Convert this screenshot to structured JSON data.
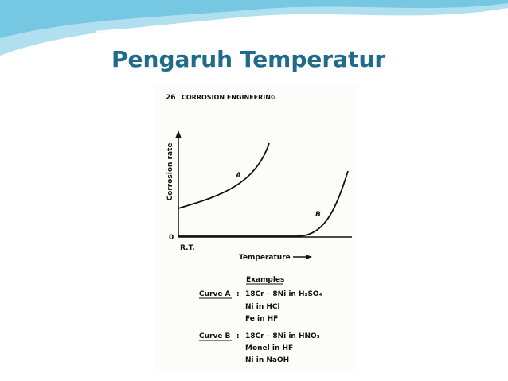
{
  "slide": {
    "title": "Pengaruh Temperatur"
  },
  "figure": {
    "header_number": "26",
    "header_title": "CORROSION ENGINEERING",
    "y_axis_label": "Corrosion rate",
    "x_axis_label": "Temperature",
    "origin_label": "0",
    "rt_label": "R.T.",
    "curve_labels": [
      "A",
      "B"
    ],
    "examples": {
      "heading": "Examples",
      "separator": ":",
      "groups": [
        {
          "label": "Curve A",
          "items": [
            "18Cr – 8Ni in H₂SO₄",
            "Ni in HCl",
            "Fe in HF"
          ]
        },
        {
          "label": "Curve B",
          "items": [
            "18Cr – 8Ni in HNO₃",
            "Monel in HF",
            "Ni in NaOH"
          ]
        }
      ]
    }
  }
}
